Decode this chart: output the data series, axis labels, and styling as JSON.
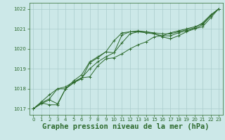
{
  "background_color": "#cce8e8",
  "grid_color": "#aacccc",
  "line_color": "#2d6a2d",
  "marker_color": "#2d6a2d",
  "xlabel": "Graphe pression niveau de la mer (hPa)",
  "xlabel_fontsize": 7.5,
  "ylim": [
    1016.7,
    1022.3
  ],
  "xlim": [
    -0.5,
    23.5
  ],
  "yticks": [
    1017,
    1018,
    1019,
    1020,
    1021,
    1022
  ],
  "xticks": [
    0,
    1,
    2,
    3,
    4,
    5,
    6,
    7,
    8,
    9,
    10,
    11,
    12,
    13,
    14,
    15,
    16,
    17,
    18,
    19,
    20,
    21,
    22,
    23
  ],
  "series1_x": [
    0,
    1,
    2,
    3,
    4,
    5,
    6,
    7,
    8,
    9,
    10,
    11,
    12,
    13,
    14,
    15,
    16,
    17,
    18,
    19,
    20,
    21,
    22,
    23
  ],
  "series1_y": [
    1017.0,
    1017.3,
    1017.2,
    1017.2,
    1018.0,
    1018.3,
    1018.55,
    1019.0,
    1019.35,
    1019.6,
    1019.8,
    1020.3,
    1020.75,
    1020.85,
    1020.8,
    1020.75,
    1020.6,
    1020.5,
    1020.65,
    1020.85,
    1021.0,
    1021.1,
    1021.55,
    1022.0
  ],
  "series2_x": [
    0,
    1,
    2,
    3,
    4,
    5,
    6,
    7,
    8,
    9,
    10,
    11,
    12,
    13,
    14,
    15,
    16,
    17,
    18,
    19,
    20,
    21,
    22,
    23
  ],
  "series2_y": [
    1017.0,
    1017.3,
    1017.5,
    1018.0,
    1018.0,
    1018.3,
    1018.5,
    1019.3,
    1019.55,
    1019.85,
    1019.8,
    1020.7,
    1020.85,
    1020.85,
    1020.85,
    1020.75,
    1020.65,
    1020.65,
    1020.8,
    1020.9,
    1021.0,
    1021.2,
    1021.65,
    1022.0
  ],
  "series3_x": [
    0,
    1,
    2,
    3,
    4,
    5,
    6,
    7,
    8,
    9,
    10,
    11,
    12,
    13,
    14,
    15,
    16,
    17,
    18,
    19,
    20,
    21,
    22,
    23
  ],
  "series3_y": [
    1017.0,
    1017.35,
    1017.7,
    1018.0,
    1018.1,
    1018.35,
    1018.55,
    1018.6,
    1019.15,
    1019.5,
    1019.55,
    1019.75,
    1020.0,
    1020.2,
    1020.35,
    1020.6,
    1020.65,
    1020.8,
    1020.9,
    1021.0,
    1021.1,
    1021.25,
    1021.65,
    1022.0
  ],
  "series4_x": [
    0,
    1,
    2,
    3,
    4,
    5,
    6,
    7,
    8,
    9,
    10,
    11,
    12,
    13,
    14,
    15,
    16,
    17,
    18,
    19,
    20,
    21,
    22,
    23
  ],
  "series4_y": [
    1017.0,
    1017.25,
    1017.45,
    1017.25,
    1018.0,
    1018.4,
    1018.7,
    1019.35,
    1019.6,
    1019.85,
    1020.4,
    1020.8,
    1020.85,
    1020.9,
    1020.85,
    1020.8,
    1020.75,
    1020.75,
    1020.85,
    1020.95,
    1021.05,
    1021.3,
    1021.7,
    1022.0
  ]
}
